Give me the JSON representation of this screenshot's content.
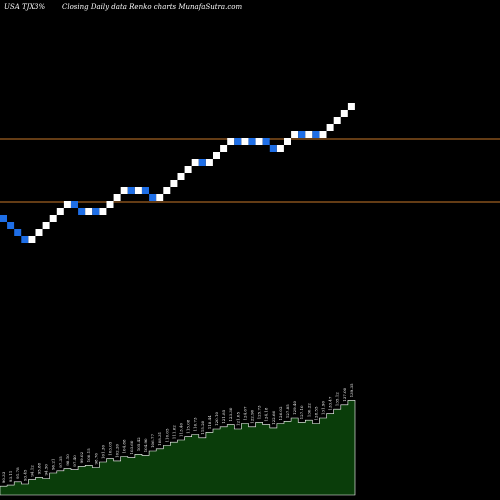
{
  "header": {
    "symbol": "USA TJX",
    "change": "3%",
    "caption": "Closing Daily data  Renko  charts MunafaSutra.com"
  },
  "colors": {
    "background": "#000000",
    "up_brick": "#ffffff",
    "down_brick": "#1e6ee6",
    "reference_line": "#c8782a",
    "volume_fill": "#0a3d0a",
    "volume_edge": "#ffffff"
  },
  "chart_data": {
    "type": "renko",
    "title": "",
    "directions": [
      "d",
      "d",
      "d",
      "d",
      "u",
      "u",
      "u",
      "u",
      "u",
      "u",
      "d",
      "d",
      "u",
      "d",
      "u",
      "u",
      "u",
      "u",
      "d",
      "u",
      "d",
      "d",
      "u",
      "u",
      "u",
      "u",
      "u",
      "u",
      "d",
      "u",
      "u",
      "u",
      "u",
      "d",
      "u",
      "d",
      "u",
      "d",
      "d",
      "u",
      "u",
      "u",
      "d",
      "u",
      "d",
      "u",
      "u",
      "u",
      "u",
      "u"
    ],
    "reference_lines": [
      2,
      11
    ],
    "volume": {
      "values": [
        0.08,
        0.09,
        0.12,
        0.1,
        0.14,
        0.16,
        0.15,
        0.2,
        0.22,
        0.24,
        0.23,
        0.26,
        0.27,
        0.25,
        0.3,
        0.33,
        0.31,
        0.35,
        0.34,
        0.37,
        0.36,
        0.4,
        0.42,
        0.45,
        0.48,
        0.5,
        0.53,
        0.55,
        0.52,
        0.57,
        0.6,
        0.62,
        0.64,
        0.6,
        0.65,
        0.62,
        0.66,
        0.64,
        0.61,
        0.65,
        0.67,
        0.7,
        0.66,
        0.68,
        0.65,
        0.7,
        0.74,
        0.78,
        0.82,
        0.86
      ],
      "labels": [
        "90.33",
        "93.11",
        "91.78",
        "93.45",
        "94.12",
        "95.88",
        "94.50",
        "96.21",
        "97.35",
        "98.10",
        "97.40",
        "99.02",
        "100.15",
        "98.76",
        "101.30",
        "103.05",
        "102.20",
        "104.88",
        "103.60",
        "105.42",
        "104.90",
        "106.77",
        "108.31",
        "110.05",
        "111.62",
        "113.40",
        "115.08",
        "116.73",
        "115.20",
        "118.44",
        "120.10",
        "121.85",
        "123.30",
        "121.05",
        "124.67",
        "122.90",
        "125.73",
        "124.18",
        "122.66",
        "126.02",
        "127.85",
        "129.40",
        "127.10",
        "130.22",
        "128.55",
        "131.90",
        "133.47",
        "135.12",
        "137.00",
        "139.35"
      ]
    }
  }
}
